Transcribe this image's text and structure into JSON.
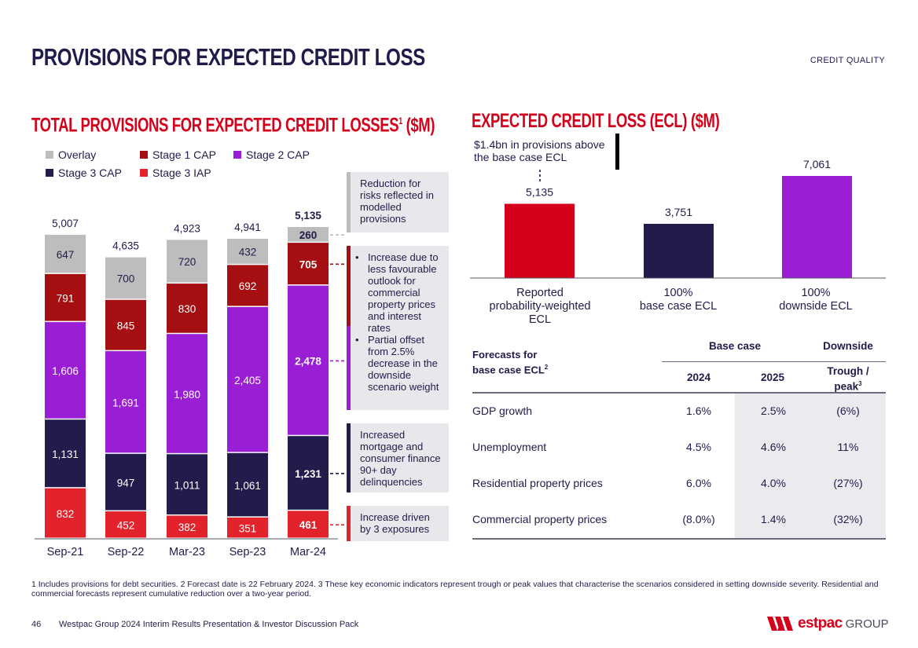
{
  "page": {
    "title": "PROVISIONS FOR EXPECTED CREDIT LOSS",
    "section": "CREDIT QUALITY"
  },
  "colors": {
    "navy": "#1f1c4a",
    "red": "#d5001a",
    "stage3_iap": "#e3232b",
    "stage3_cap": "#221c4d",
    "stage2_cap": "#9a1ed6",
    "stage1_cap": "#a50f12",
    "overlay": "#bdbdbd"
  },
  "left": {
    "title": "TOTAL PROVISIONS FOR EXPECTED CREDIT LOSSES",
    "title_sup": "1",
    "title_suffix": " ($M)",
    "legend": [
      "Overlay",
      "Stage 1 CAP",
      "Stage 2 CAP",
      "Stage 3 CAP",
      "Stage 3 IAP"
    ],
    "notes": {
      "overlay": "Reduction for risks reflected in modelled provisions",
      "stage1": "Increase due to less favourable outlook for commercial property prices and interest rates",
      "stage2": "Partial offset from 2.5% decrease in the downside scenario weight",
      "stage3cap": "Increased mortgage and consumer finance 90+ day delinquencies",
      "stage3iap": "Increase driven by 3 exposures"
    }
  },
  "right": {
    "title": "EXPECTED CREDIT LOSS (ECL) ($M)",
    "callout": "$1.4bn in provisions above the base case ECL",
    "categories": [
      "Reported probability-weighted ECL",
      "100% base case ECL",
      "100% downside ECL"
    ],
    "cat_lines": [
      [
        "Reported",
        "probability-weighted",
        "ECL"
      ],
      [
        "100%",
        "base case ECL"
      ],
      [
        "100%",
        "downside ECL"
      ]
    ]
  },
  "forecast": {
    "heading_line1": "Forecasts for",
    "heading_line2": "base case ECL",
    "heading_sup": "2",
    "base_case": "Base case",
    "downside": "Downside",
    "col_2024": "2024",
    "col_2025": "2025",
    "col_trough_line1": "Trough /",
    "col_trough_line2": "peak",
    "col_trough_sup": "3",
    "rows": [
      {
        "label": "GDP growth",
        "y2024": "1.6%",
        "y2025": "2.5%",
        "downside": "(6%)"
      },
      {
        "label": "Unemployment",
        "y2024": "4.5%",
        "y2025": "4.6%",
        "downside": "11%"
      },
      {
        "label": "Residential property prices",
        "y2024": "6.0%",
        "y2025": "4.0%",
        "downside": "(27%)"
      },
      {
        "label": "Commercial property prices",
        "y2024": "(8.0%)",
        "y2025": "1.4%",
        "downside": "(32%)"
      }
    ]
  },
  "footnote": "1 Includes provisions for debt securities. 2 Forecast date is 22 February 2024. 3 These key economic indicators represent trough or peak values that characterise the scenarios considered in setting downside severity. Residential and commercial forecasts represent cumulative reduction over a two-year period.",
  "footer": {
    "page_number": "46",
    "text": "Westpac Group 2024 Interim Results Presentation & Investor Discussion Pack",
    "logo_brand": "estpac",
    "logo_group": "GROUP"
  },
  "chart_data": [
    {
      "type": "bar",
      "stacked": true,
      "title": "TOTAL PROVISIONS FOR EXPECTED CREDIT LOSSES1 ($M)",
      "categories": [
        "Sep-21",
        "Sep-22",
        "Mar-23",
        "Sep-23",
        "Mar-24"
      ],
      "series": [
        {
          "name": "Stage 3 IAP",
          "values": [
            832,
            452,
            382,
            351,
            461
          ]
        },
        {
          "name": "Stage 3 CAP",
          "values": [
            1131,
            947,
            1011,
            1061,
            1231
          ]
        },
        {
          "name": "Stage 2 CAP",
          "values": [
            1606,
            1691,
            1980,
            2405,
            2478
          ]
        },
        {
          "name": "Stage 1 CAP",
          "values": [
            791,
            845,
            830,
            692,
            705
          ]
        },
        {
          "name": "Overlay",
          "values": [
            647,
            700,
            720,
            432,
            260
          ]
        }
      ],
      "value_labels": [
        [
          "832",
          "452",
          "382",
          "351",
          "461"
        ],
        [
          "1,131",
          "947",
          "1,011",
          "1,061",
          "1,231"
        ],
        [
          "1,606",
          "1,691",
          "1,980",
          "2,405",
          "2,478"
        ],
        [
          "791",
          "845",
          "830",
          "692",
          "705"
        ],
        [
          "647",
          "700",
          "720",
          "432",
          "260"
        ]
      ],
      "totals": [
        5007,
        4635,
        4923,
        4941,
        5135
      ],
      "total_labels": [
        "5,007",
        "4,635",
        "4,923",
        "4,941",
        "5,135"
      ],
      "xlabel": "",
      "ylabel": "$M",
      "ylim": [
        0,
        5135
      ]
    },
    {
      "type": "bar",
      "title": "EXPECTED CREDIT LOSS (ECL) ($M)",
      "categories": [
        "Reported probability-weighted ECL",
        "100% base case ECL",
        "100% downside ECL"
      ],
      "values": [
        5135,
        3751,
        7061
      ],
      "value_labels": [
        "5,135",
        "3,751",
        "7,061"
      ],
      "xlabel": "",
      "ylabel": "$M",
      "ylim": [
        0,
        7061
      ]
    }
  ]
}
